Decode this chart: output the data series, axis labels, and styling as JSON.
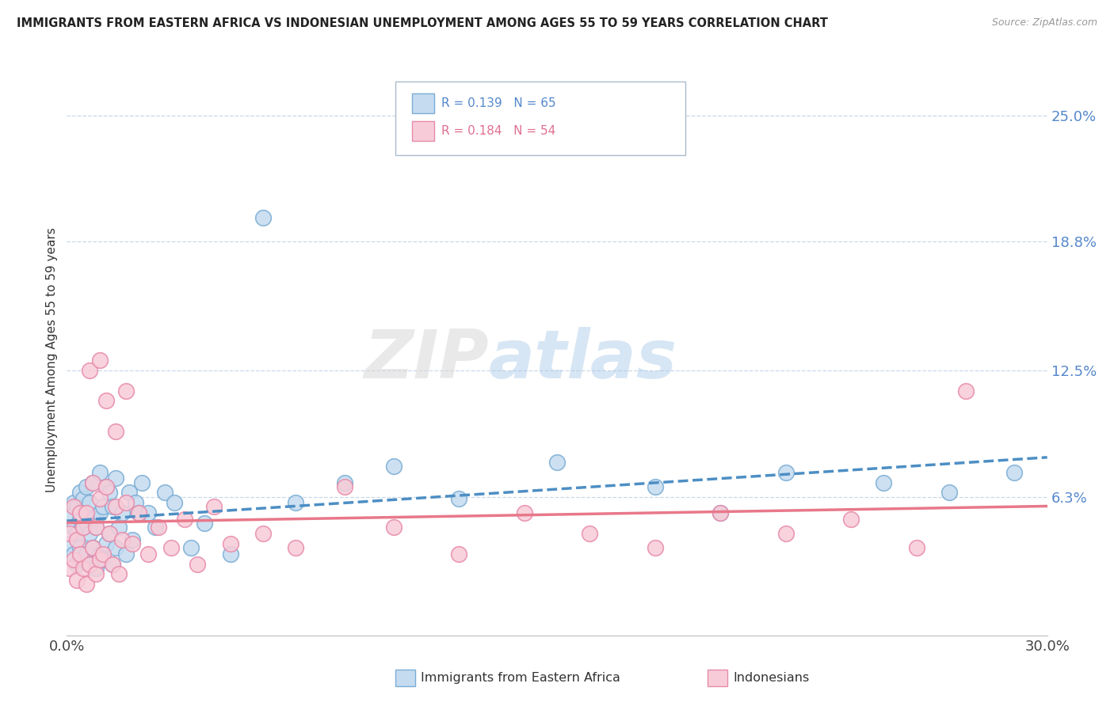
{
  "title": "IMMIGRANTS FROM EASTERN AFRICA VS INDONESIAN UNEMPLOYMENT AMONG AGES 55 TO 59 YEARS CORRELATION CHART",
  "source": "Source: ZipAtlas.com",
  "ylabel": "Unemployment Among Ages 55 to 59 years",
  "xlim": [
    0.0,
    0.3
  ],
  "ylim": [
    -0.005,
    0.265
  ],
  "xticklabels": [
    "0.0%",
    "30.0%"
  ],
  "ytick_positions": [
    0.063,
    0.125,
    0.188,
    0.25
  ],
  "ytick_labels": [
    "6.3%",
    "12.5%",
    "18.8%",
    "25.0%"
  ],
  "series1_color": "#c5dbf0",
  "series1_edge": "#7aadd4",
  "series2_color": "#f7ccd8",
  "series2_edge": "#e88aaa",
  "trend1_color": "#4d8ec4",
  "trend2_color": "#e8788a",
  "legend_label1": "Immigrants from Eastern Africa",
  "legend_label2": "Indonesians",
  "legend_r1": "R = 0.139",
  "legend_n1": "N = 65",
  "legend_r2": "R = 0.184",
  "legend_n2": "N = 54",
  "watermark_zip": "ZIP",
  "watermark_atlas": "atlas",
  "series1_x": [
    0.001,
    0.001,
    0.002,
    0.002,
    0.002,
    0.003,
    0.003,
    0.003,
    0.004,
    0.004,
    0.004,
    0.005,
    0.005,
    0.005,
    0.006,
    0.006,
    0.006,
    0.007,
    0.007,
    0.007,
    0.008,
    0.008,
    0.008,
    0.009,
    0.009,
    0.01,
    0.01,
    0.01,
    0.011,
    0.011,
    0.012,
    0.012,
    0.013,
    0.013,
    0.014,
    0.014,
    0.015,
    0.015,
    0.016,
    0.017,
    0.018,
    0.019,
    0.02,
    0.021,
    0.022,
    0.023,
    0.025,
    0.027,
    0.03,
    0.033,
    0.038,
    0.042,
    0.05,
    0.06,
    0.07,
    0.085,
    0.1,
    0.12,
    0.15,
    0.18,
    0.2,
    0.22,
    0.25,
    0.27,
    0.29
  ],
  "series1_y": [
    0.04,
    0.055,
    0.035,
    0.048,
    0.06,
    0.03,
    0.045,
    0.058,
    0.038,
    0.052,
    0.065,
    0.032,
    0.048,
    0.062,
    0.035,
    0.05,
    0.068,
    0.03,
    0.045,
    0.06,
    0.038,
    0.052,
    0.07,
    0.028,
    0.048,
    0.035,
    0.055,
    0.075,
    0.032,
    0.058,
    0.04,
    0.068,
    0.045,
    0.065,
    0.03,
    0.058,
    0.038,
    0.072,
    0.048,
    0.055,
    0.035,
    0.065,
    0.042,
    0.06,
    0.055,
    0.07,
    0.055,
    0.048,
    0.065,
    0.06,
    0.038,
    0.05,
    0.035,
    0.2,
    0.06,
    0.07,
    0.078,
    0.062,
    0.08,
    0.068,
    0.055,
    0.075,
    0.07,
    0.065,
    0.075
  ],
  "series2_x": [
    0.001,
    0.001,
    0.002,
    0.002,
    0.003,
    0.003,
    0.004,
    0.004,
    0.005,
    0.005,
    0.006,
    0.006,
    0.007,
    0.007,
    0.008,
    0.008,
    0.009,
    0.009,
    0.01,
    0.01,
    0.011,
    0.012,
    0.013,
    0.014,
    0.015,
    0.016,
    0.017,
    0.018,
    0.02,
    0.022,
    0.025,
    0.028,
    0.032,
    0.036,
    0.04,
    0.045,
    0.05,
    0.06,
    0.07,
    0.085,
    0.1,
    0.12,
    0.14,
    0.16,
    0.18,
    0.2,
    0.22,
    0.24,
    0.26,
    0.275,
    0.01,
    0.012,
    0.015,
    0.018
  ],
  "series2_y": [
    0.028,
    0.045,
    0.032,
    0.058,
    0.022,
    0.042,
    0.035,
    0.055,
    0.028,
    0.048,
    0.02,
    0.055,
    0.03,
    0.125,
    0.038,
    0.07,
    0.025,
    0.048,
    0.032,
    0.062,
    0.035,
    0.068,
    0.045,
    0.03,
    0.058,
    0.025,
    0.042,
    0.06,
    0.04,
    0.055,
    0.035,
    0.048,
    0.038,
    0.052,
    0.03,
    0.058,
    0.04,
    0.045,
    0.038,
    0.068,
    0.048,
    0.035,
    0.055,
    0.045,
    0.038,
    0.055,
    0.045,
    0.052,
    0.038,
    0.115,
    0.13,
    0.11,
    0.095,
    0.115
  ]
}
